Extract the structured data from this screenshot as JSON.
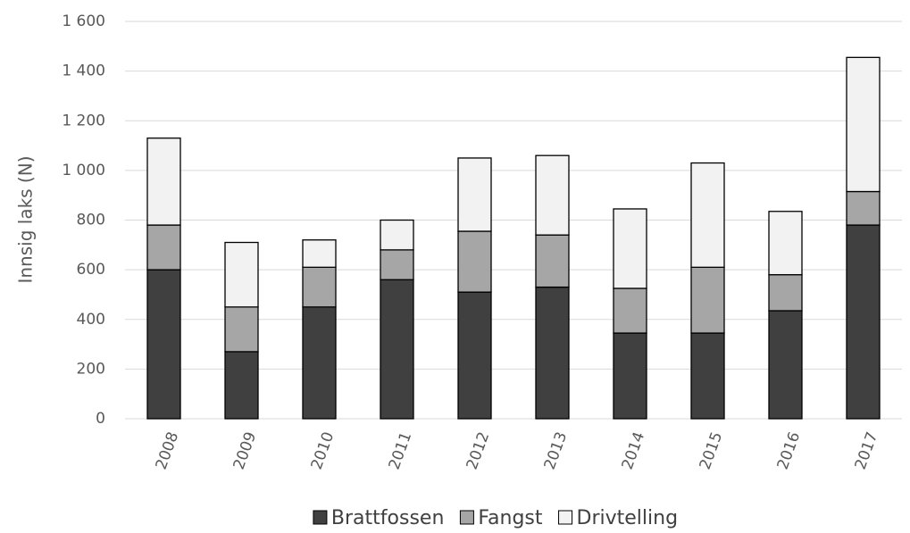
{
  "chart_data": {
    "type": "stacked_bar",
    "y_label": "Innsig laks (N)",
    "categories": [
      "2008",
      "2009",
      "2010",
      "2011",
      "2012",
      "2013",
      "2014",
      "2015",
      "2016",
      "2017"
    ],
    "series": [
      {
        "name": "Brattfossen",
        "color": "#404040",
        "values": [
          600,
          270,
          450,
          560,
          510,
          530,
          345,
          345,
          435,
          780
        ]
      },
      {
        "name": "Fangst",
        "color": "#a6a6a6",
        "values": [
          180,
          180,
          160,
          120,
          245,
          210,
          180,
          265,
          145,
          135
        ]
      },
      {
        "name": "Drivtelling",
        "color": "#f2f2f2",
        "values": [
          350,
          260,
          110,
          120,
          295,
          320,
          320,
          420,
          255,
          540
        ]
      }
    ],
    "ylim": [
      0,
      1600
    ],
    "yticks": [
      0,
      200,
      400,
      600,
      800,
      {
        "value": 1000,
        "label": "1 000"
      },
      {
        "value": 1200,
        "label": "1 200"
      },
      {
        "value": 1400,
        "label": "1 400"
      },
      {
        "value": 1600,
        "label": "1 600"
      }
    ],
    "grid": true,
    "legend": "bottom"
  }
}
